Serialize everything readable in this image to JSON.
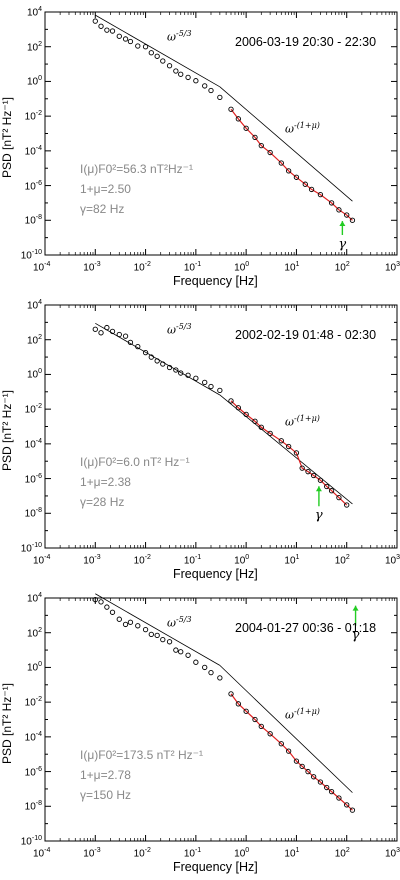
{
  "chart_data": [
    {
      "type": "scatter",
      "title": "2006-03-19 20:30 - 22:30",
      "xlabel": "Frequency [Hz]",
      "ylabel": "PSD [nT² Hz⁻¹]",
      "xscale": "log",
      "yscale": "log",
      "xlim": [
        0.0001,
        1000
      ],
      "ylim": [
        1e-10,
        10000
      ],
      "x_ticks": [
        "10-4",
        "10-3",
        "10-2",
        "10-1",
        "100",
        "101",
        "102",
        "103"
      ],
      "y_ticks": [
        "10-10",
        "10-8",
        "10-6",
        "10-4",
        "10-2",
        "100",
        "102",
        "104"
      ],
      "series": [
        {
          "x": [
            0.001,
            0.0013,
            0.0017,
            0.0022,
            0.003,
            0.004,
            0.005,
            0.007,
            0.01,
            0.013,
            0.017,
            0.022,
            0.03,
            0.04,
            0.05,
            0.07,
            0.1,
            0.15,
            0.2,
            0.3,
            0.5,
            0.7,
            1,
            1.5,
            2,
            3,
            5,
            7,
            10,
            15,
            20,
            30,
            50,
            70,
            100,
            130
          ],
          "y": [
            3000,
            1500,
            900,
            800,
            400,
            280,
            200,
            110,
            100,
            45,
            28,
            15,
            8,
            4,
            2.6,
            1.7,
            1.1,
            0.55,
            0.3,
            0.12,
            0.025,
            0.007,
            0.002,
            0.0006,
            0.0002,
            8e-05,
            2e-05,
            7e-06,
            3e-06,
            1.2e-06,
            6e-07,
            3e-07,
            1e-07,
            4e-08,
            2e-08,
            1e-08
          ]
        }
      ],
      "law_high_index": "-(1+μ)",
      "law_low_index": "-5/3",
      "fit": {
        "I_F0_2": "56.3",
        "one_plus_mu": "2.50",
        "gamma_hz": "82"
      },
      "fit_lines": [
        "I(μ)F0²=56.3  nT²Hz⁻¹",
        "1+μ=2.50",
        "γ=82  Hz"
      ],
      "gamma_marker_x": 82
    },
    {
      "type": "scatter",
      "title": "2002-02-19 01:48 - 02:30",
      "xlabel": "Frequency [Hz]",
      "ylabel": "PSD [nT² Hz⁻¹]",
      "xscale": "log",
      "yscale": "log",
      "xlim": [
        0.0001,
        1000
      ],
      "ylim": [
        1e-10,
        10000
      ],
      "x_ticks": [
        "10-4",
        "10-3",
        "10-2",
        "10-1",
        "100",
        "101",
        "102",
        "103"
      ],
      "y_ticks": [
        "10-10",
        "10-8",
        "10-6",
        "10-4",
        "10-2",
        "100",
        "102",
        "104"
      ],
      "series": [
        {
          "x": [
            0.001,
            0.0013,
            0.0017,
            0.0022,
            0.003,
            0.004,
            0.005,
            0.007,
            0.01,
            0.013,
            0.017,
            0.022,
            0.03,
            0.04,
            0.05,
            0.07,
            0.1,
            0.15,
            0.2,
            0.3,
            0.5,
            0.7,
            1,
            1.5,
            2,
            3,
            5,
            7,
            10,
            13,
            17,
            22,
            30,
            40,
            50,
            70,
            100
          ],
          "y": [
            400,
            250,
            500,
            300,
            200,
            160,
            70,
            40,
            18,
            10,
            6,
            4,
            2.5,
            1.8,
            1.2,
            0.9,
            0.6,
            0.35,
            0.2,
            0.12,
            0.03,
            0.012,
            0.005,
            0.002,
            0.0009,
            0.0004,
            0.00015,
            7e-05,
            3e-05,
            4e-06,
            2.5e-06,
            1.5e-06,
            8e-07,
            3.5e-07,
            2e-07,
            8e-08,
            3e-08
          ]
        }
      ],
      "law_high_index": "-(1+μ)",
      "law_low_index": "-5/3",
      "fit": {
        "I_F0_2": "6.0",
        "one_plus_mu": "2.38",
        "gamma_hz": "28"
      },
      "fit_lines": [
        "I(μ)F0²=6.0  nT² Hz⁻¹",
        "1+μ=2.38",
        "γ=28  Hz"
      ],
      "gamma_marker_x": 28
    },
    {
      "type": "scatter",
      "title": "2004-01-27 00:36 - 01:18",
      "xlabel": "Frequency [Hz]",
      "ylabel": "PSD [nT² Hz⁻¹]",
      "xscale": "log",
      "yscale": "log",
      "xlim": [
        0.0001,
        1000
      ],
      "ylim": [
        1e-10,
        10000
      ],
      "x_ticks": [
        "10-4",
        "10-3",
        "10-2",
        "10-1",
        "100",
        "101",
        "102",
        "103"
      ],
      "y_ticks": [
        "10-10",
        "10-8",
        "10-6",
        "10-4",
        "10-2",
        "100",
        "102",
        "104"
      ],
      "series": [
        {
          "x": [
            0.001,
            0.0013,
            0.0017,
            0.0022,
            0.003,
            0.004,
            0.005,
            0.007,
            0.01,
            0.013,
            0.017,
            0.022,
            0.03,
            0.04,
            0.05,
            0.07,
            0.1,
            0.15,
            0.2,
            0.3,
            0.5,
            0.7,
            1,
            1.5,
            2,
            3,
            5,
            7,
            10,
            13,
            17,
            22,
            30,
            40,
            50,
            70,
            100,
            130
          ],
          "y": [
            8000,
            6000,
            3000,
            1500,
            600,
            300,
            400,
            250,
            150,
            80,
            70,
            40,
            30,
            10,
            8,
            5,
            2,
            1,
            0.5,
            0.25,
            0.03,
            0.008,
            0.003,
            0.001,
            0.0004,
            0.00015,
            4e-05,
            1.5e-05,
            4e-06,
            2e-06,
            1e-06,
            5e-07,
            2.5e-07,
            1.2e-07,
            7e-08,
            3e-08,
            1.2e-08,
            6e-09
          ]
        }
      ],
      "law_high_index": "-(1+μ)",
      "law_low_index": "-5/3",
      "fit": {
        "I_F0_2": "173.5",
        "one_plus_mu": "2.78",
        "gamma_hz": "150"
      },
      "fit_lines": [
        "I(μ)F0²=173.5  nT² Hz⁻¹",
        "1+μ=2.78",
        "γ=150  Hz"
      ],
      "gamma_marker_x": 150
    }
  ]
}
